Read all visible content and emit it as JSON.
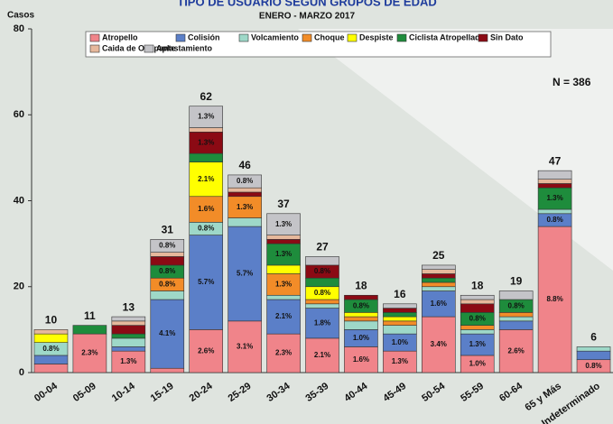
{
  "chart_data": {
    "type": "stacked-bar",
    "title": "TIPO DE USUARIO SEGÚN GRUPOS DE EDAD",
    "subtitle": "ENERO - MARZO 2017",
    "y_label": "Casos",
    "annotation": "N = 386",
    "categories": [
      "00-04",
      "05-09",
      "10-14",
      "15-19",
      "20-24",
      "25-29",
      "30-34",
      "35-39",
      "40-44",
      "45-49",
      "50-54",
      "55-59",
      "60-64",
      "65 y Más",
      "Indeterminado"
    ],
    "totals": [
      10,
      11,
      13,
      31,
      62,
      46,
      37,
      27,
      18,
      16,
      25,
      18,
      19,
      47,
      6
    ],
    "ylim": [
      0,
      80
    ],
    "yticks": [
      0,
      20,
      40,
      60,
      80
    ],
    "series": [
      {
        "name": "Atropello",
        "color": "#f0848a",
        "values": [
          2,
          9,
          5,
          1,
          10,
          12,
          9,
          8,
          6,
          5,
          13,
          4,
          10,
          34,
          3
        ],
        "value_labels": [
          null,
          "2.3%",
          "1.3%",
          null,
          "2.6%",
          "3.1%",
          "2.3%",
          "2.1%",
          "1.6%",
          "1.3%",
          "3.4%",
          "1.0%",
          "2.6%",
          "8.8%",
          "0.8%"
        ]
      },
      {
        "name": "Colisión",
        "color": "#5b7fc8",
        "values": [
          2,
          0,
          1,
          16,
          22,
          22,
          8,
          7,
          4,
          4,
          6,
          5,
          2,
          3,
          2
        ],
        "value_labels": [
          null,
          null,
          null,
          "4.1%",
          "5.7%",
          "5.7%",
          "2.1%",
          "1.8%",
          "1.0%",
          "1.0%",
          "1.6%",
          "1.3%",
          null,
          "0.8%",
          null
        ]
      },
      {
        "name": "Volcamiento",
        "color": "#9ed8c8",
        "values": [
          3,
          0,
          2,
          2,
          3,
          2,
          1,
          1,
          2,
          2,
          1,
          1,
          1,
          1,
          1
        ],
        "value_labels": [
          "0.8%",
          null,
          null,
          null,
          "0.8%",
          null,
          null,
          null,
          null,
          null,
          null,
          null,
          null,
          null,
          null
        ]
      },
      {
        "name": "Choque",
        "color": "#f28c28",
        "values": [
          0,
          0,
          0,
          3,
          6,
          5,
          5,
          1,
          1,
          1,
          1,
          1,
          1,
          0,
          0
        ],
        "value_labels": [
          null,
          null,
          null,
          "0.8%",
          "1.6%",
          "1.3%",
          "1.3%",
          null,
          null,
          null,
          null,
          null,
          null,
          null,
          null
        ]
      },
      {
        "name": "Despiste",
        "color": "#ffff00",
        "values": [
          2,
          0,
          0,
          0,
          8,
          0,
          2,
          3,
          1,
          1,
          0,
          0,
          0,
          0,
          0
        ],
        "value_labels": [
          null,
          null,
          null,
          null,
          "2.1%",
          null,
          null,
          "0.8%",
          null,
          null,
          null,
          null,
          null,
          null,
          null
        ]
      },
      {
        "name": "Ciclista Atropellado",
        "color": "#1e8c3c",
        "values": [
          0,
          2,
          1,
          3,
          2,
          0,
          5,
          2,
          3,
          1,
          1,
          3,
          3,
          5,
          0
        ],
        "value_labels": [
          null,
          null,
          null,
          "0.8%",
          null,
          null,
          "1.3%",
          null,
          "0.8%",
          null,
          null,
          "0.8%",
          "0.8%",
          "1.3%",
          null
        ]
      },
      {
        "name": "Sin Dato",
        "color": "#8b0a14",
        "values": [
          0,
          0,
          2,
          2,
          5,
          1,
          1,
          3,
          1,
          1,
          1,
          2,
          0,
          1,
          0
        ],
        "value_labels": [
          null,
          null,
          null,
          null,
          "1.3%",
          null,
          null,
          "0.8%",
          null,
          null,
          null,
          null,
          null,
          null,
          null
        ]
      },
      {
        "name": "Caida de Ocupante",
        "color": "#e6b89c",
        "values": [
          1,
          0,
          1,
          1,
          1,
          1,
          1,
          0,
          0,
          0,
          1,
          1,
          0,
          1,
          0
        ],
        "value_labels": [
          null,
          null,
          null,
          null,
          null,
          null,
          null,
          null,
          null,
          null,
          null,
          null,
          null,
          null,
          null
        ]
      },
      {
        "name": "Aplastamiento",
        "color": "#c4c4c8",
        "values": [
          0,
          0,
          1,
          3,
          5,
          3,
          5,
          2,
          0,
          1,
          1,
          1,
          2,
          2,
          0
        ],
        "value_labels": [
          null,
          null,
          null,
          "0.8%",
          "1.3%",
          "0.8%",
          "1.3%",
          null,
          null,
          null,
          null,
          null,
          null,
          null,
          null
        ]
      }
    ]
  }
}
